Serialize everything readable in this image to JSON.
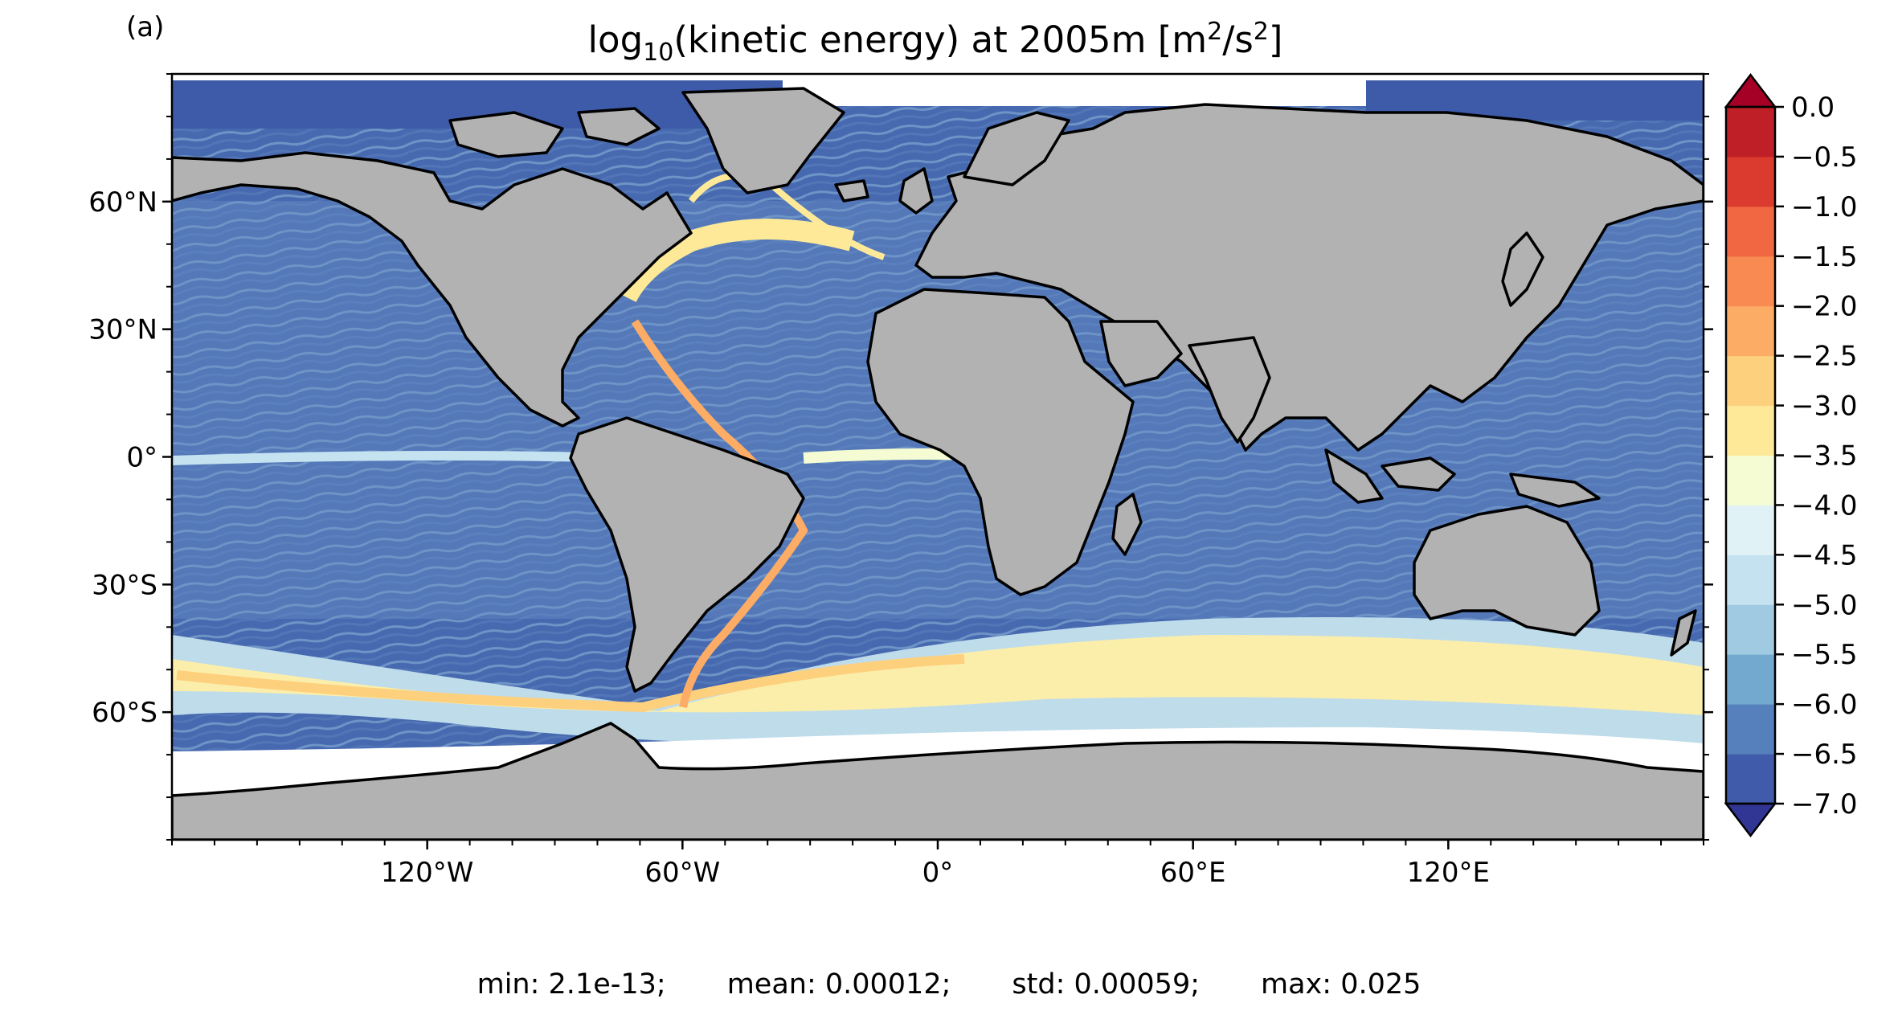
{
  "panel_label": "(a)",
  "title": {
    "prefix": "log",
    "sub": "10",
    "middle": "(kinetic energy) at 2005m [m",
    "sup1": "2",
    "mid2": "/s",
    "sup2": "2",
    "suffix": "]"
  },
  "map": {
    "projection": "PlateCarree",
    "lon_range": [
      -180,
      180
    ],
    "lat_range": [
      -90,
      90
    ],
    "x_ticks": [
      "120°W",
      "60°W",
      "0°",
      "60°E",
      "120°E"
    ],
    "x_tick_values": [
      -120,
      -60,
      0,
      60,
      120
    ],
    "y_ticks": [
      "60°N",
      "30°N",
      "0°",
      "30°S",
      "60°S"
    ],
    "y_tick_values": [
      60,
      30,
      0,
      -30,
      -60
    ],
    "land_color": "#b2b2b2",
    "coastline_color": "#000000"
  },
  "colorbar": {
    "ticks": [
      "0.0",
      "−0.5",
      "−1.0",
      "−1.5",
      "−2.0",
      "−2.5",
      "−3.0",
      "−3.5",
      "−4.0",
      "−4.5",
      "−5.0",
      "−5.5",
      "−6.0",
      "−6.5",
      "−7.0"
    ],
    "range": [
      -7.0,
      0.0
    ],
    "extend": "both",
    "colors_low_to_high": [
      "#313695",
      "#3f5ba9",
      "#5580bb",
      "#74a9cf",
      "#9fcae1",
      "#c4e2ef",
      "#e1f2f7",
      "#f5fbd2",
      "#fee999",
      "#fdd07e",
      "#fcac65",
      "#f98b52",
      "#f06742",
      "#db3a2f",
      "#bf1f26",
      "#a50026"
    ]
  },
  "stats": {
    "min": "min: 2.1e-13;",
    "mean": "mean: 0.00012;",
    "std": "std: 0.00059;",
    "max": "max: 0.025"
  }
}
